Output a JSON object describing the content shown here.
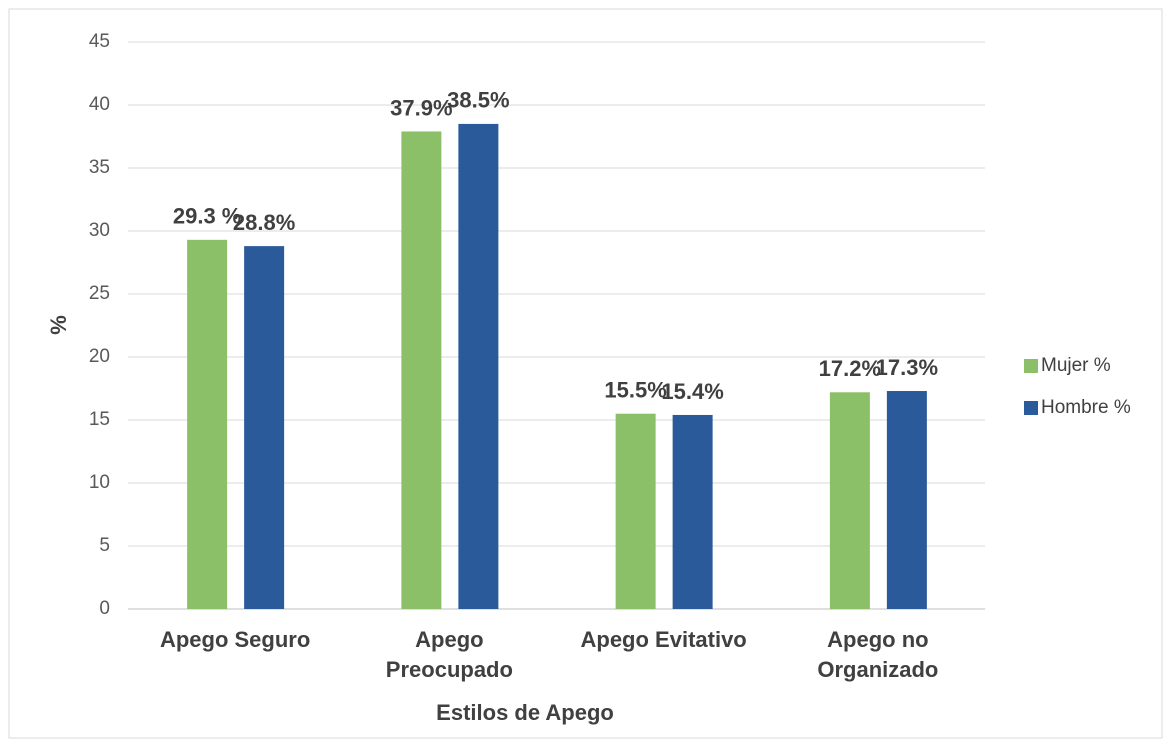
{
  "chart_data": {
    "type": "bar",
    "x_label": "Estilos de Apego",
    "y_label": "%",
    "categories": [
      "Apego Seguro",
      "Apego Preocupado",
      "Apego Evitativo",
      "Apego no Organizado"
    ],
    "series": [
      {
        "name": "Mujer %",
        "color": "#8cc068",
        "values": [
          29.3,
          37.9,
          15.5,
          17.2
        ],
        "value_labels": [
          "29.3 %",
          "37.9%",
          "15.5%",
          "17.2%"
        ]
      },
      {
        "name": "Hombre %",
        "color": "#2b5a9b",
        "values": [
          28.8,
          38.5,
          15.4,
          17.3
        ],
        "value_labels": [
          "28.8%",
          "38.5%",
          "15.4%",
          "17.3%"
        ]
      }
    ],
    "ylim": [
      0,
      45
    ],
    "yticks": [
      0,
      5,
      10,
      15,
      20,
      25,
      30,
      35,
      40,
      45
    ],
    "grid": true,
    "legend": "right"
  }
}
